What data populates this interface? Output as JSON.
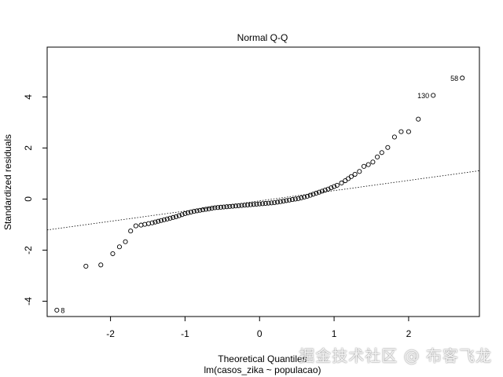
{
  "chart_data": {
    "type": "scatter",
    "title": "Normal Q-Q",
    "xlabel": "Theoretical Quantiles",
    "subtitle": "lm(casos_zika ~ populacao)",
    "ylabel": "Standardized residuals",
    "xlim": [
      -2.85,
      2.95
    ],
    "ylim": [
      -4.6,
      5.95
    ],
    "xticks": [
      -2,
      -1,
      0,
      1,
      2
    ],
    "yticks": [
      -4,
      -2,
      0,
      2,
      4
    ],
    "grid": false,
    "reference_line": {
      "intercept": -0.07,
      "slope": 0.4
    },
    "points": [
      {
        "x": -2.72,
        "y": -4.35
      },
      {
        "x": -2.33,
        "y": -2.63
      },
      {
        "x": -2.13,
        "y": -2.58
      },
      {
        "x": -1.97,
        "y": -2.14
      },
      {
        "x": -1.88,
        "y": -1.87
      },
      {
        "x": -1.8,
        "y": -1.67
      },
      {
        "x": -1.73,
        "y": -1.25
      },
      {
        "x": -1.66,
        "y": -1.05
      },
      {
        "x": -1.59,
        "y": -1.02
      },
      {
        "x": -1.54,
        "y": -0.99
      },
      {
        "x": -1.49,
        "y": -0.96
      },
      {
        "x": -1.44,
        "y": -0.93
      },
      {
        "x": -1.4,
        "y": -0.9
      },
      {
        "x": -1.36,
        "y": -0.87
      },
      {
        "x": -1.32,
        "y": -0.84
      },
      {
        "x": -1.28,
        "y": -0.81
      },
      {
        "x": -1.24,
        "y": -0.78
      },
      {
        "x": -1.2,
        "y": -0.75
      },
      {
        "x": -1.16,
        "y": -0.72
      },
      {
        "x": -1.12,
        "y": -0.69
      },
      {
        "x": -1.08,
        "y": -0.65
      },
      {
        "x": -1.04,
        "y": -0.61
      },
      {
        "x": -1.0,
        "y": -0.57
      },
      {
        "x": -0.96,
        "y": -0.54
      },
      {
        "x": -0.92,
        "y": -0.51
      },
      {
        "x": -0.88,
        "y": -0.48
      },
      {
        "x": -0.84,
        "y": -0.46
      },
      {
        "x": -0.8,
        "y": -0.44
      },
      {
        "x": -0.76,
        "y": -0.42
      },
      {
        "x": -0.72,
        "y": -0.4
      },
      {
        "x": -0.68,
        "y": -0.38
      },
      {
        "x": -0.64,
        "y": -0.36
      },
      {
        "x": -0.6,
        "y": -0.34
      },
      {
        "x": -0.56,
        "y": -0.33
      },
      {
        "x": -0.52,
        "y": -0.32
      },
      {
        "x": -0.48,
        "y": -0.31
      },
      {
        "x": -0.44,
        "y": -0.3
      },
      {
        "x": -0.4,
        "y": -0.29
      },
      {
        "x": -0.36,
        "y": -0.28
      },
      {
        "x": -0.32,
        "y": -0.27
      },
      {
        "x": -0.28,
        "y": -0.26
      },
      {
        "x": -0.24,
        "y": -0.25
      },
      {
        "x": -0.2,
        "y": -0.24
      },
      {
        "x": -0.16,
        "y": -0.23
      },
      {
        "x": -0.12,
        "y": -0.22
      },
      {
        "x": -0.08,
        "y": -0.21
      },
      {
        "x": -0.04,
        "y": -0.2
      },
      {
        "x": 0.0,
        "y": -0.19
      },
      {
        "x": 0.04,
        "y": -0.18
      },
      {
        "x": 0.08,
        "y": -0.17
      },
      {
        "x": 0.12,
        "y": -0.16
      },
      {
        "x": 0.16,
        "y": -0.15
      },
      {
        "x": 0.2,
        "y": -0.14
      },
      {
        "x": 0.24,
        "y": -0.12
      },
      {
        "x": 0.28,
        "y": -0.1
      },
      {
        "x": 0.32,
        "y": -0.08
      },
      {
        "x": 0.36,
        "y": -0.06
      },
      {
        "x": 0.4,
        "y": -0.04
      },
      {
        "x": 0.44,
        "y": -0.02
      },
      {
        "x": 0.48,
        "y": 0.0
      },
      {
        "x": 0.52,
        "y": 0.02
      },
      {
        "x": 0.56,
        "y": 0.05
      },
      {
        "x": 0.6,
        "y": 0.08
      },
      {
        "x": 0.64,
        "y": 0.11
      },
      {
        "x": 0.68,
        "y": 0.15
      },
      {
        "x": 0.72,
        "y": 0.19
      },
      {
        "x": 0.76,
        "y": 0.23
      },
      {
        "x": 0.8,
        "y": 0.27
      },
      {
        "x": 0.84,
        "y": 0.31
      },
      {
        "x": 0.88,
        "y": 0.35
      },
      {
        "x": 0.92,
        "y": 0.39
      },
      {
        "x": 0.96,
        "y": 0.44
      },
      {
        "x": 1.0,
        "y": 0.49
      },
      {
        "x": 1.04,
        "y": 0.54
      },
      {
        "x": 1.1,
        "y": 0.63
      },
      {
        "x": 1.15,
        "y": 0.72
      },
      {
        "x": 1.19,
        "y": 0.8
      },
      {
        "x": 1.23,
        "y": 0.88
      },
      {
        "x": 1.28,
        "y": 0.97
      },
      {
        "x": 1.34,
        "y": 1.08
      },
      {
        "x": 1.4,
        "y": 1.28
      },
      {
        "x": 1.46,
        "y": 1.35
      },
      {
        "x": 1.52,
        "y": 1.45
      },
      {
        "x": 1.58,
        "y": 1.65
      },
      {
        "x": 1.64,
        "y": 1.82
      },
      {
        "x": 1.72,
        "y": 2.02
      },
      {
        "x": 1.81,
        "y": 2.43
      },
      {
        "x": 1.9,
        "y": 2.64
      },
      {
        "x": 2.0,
        "y": 2.64
      },
      {
        "x": 2.13,
        "y": 3.13
      },
      {
        "x": 2.33,
        "y": 4.06
      },
      {
        "x": 2.72,
        "y": 4.74
      }
    ],
    "point_labels": [
      {
        "text": "8",
        "x": -2.72,
        "y": -4.35,
        "side": "right"
      },
      {
        "text": "130",
        "x": 2.33,
        "y": 4.06,
        "side": "left"
      },
      {
        "text": "58",
        "x": 2.72,
        "y": 4.74,
        "side": "left"
      }
    ]
  },
  "watermark": "掘金技术社区 @ 布客飞龙"
}
